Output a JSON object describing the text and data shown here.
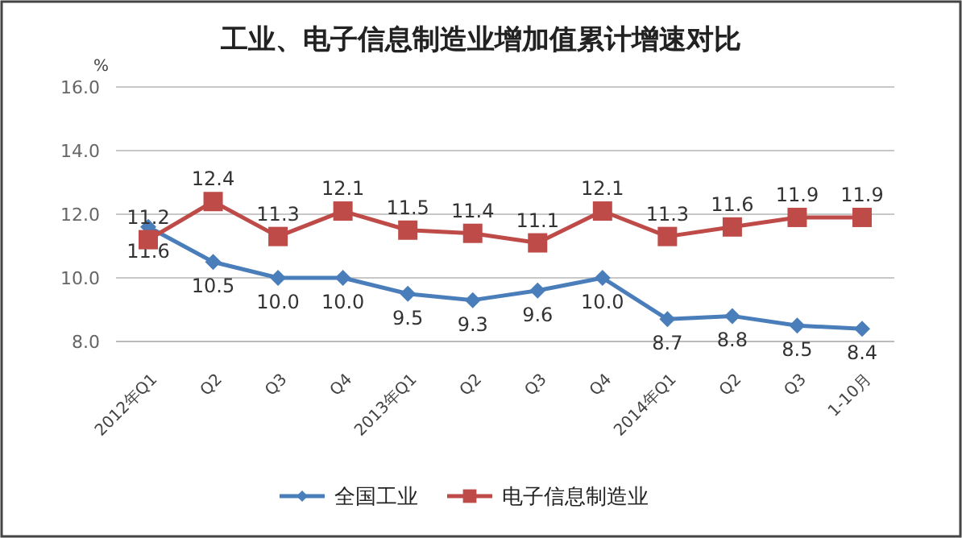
{
  "chart_data": {
    "type": "line",
    "title": "工业、电子信息制造业增加值累计增速对比",
    "ylabel": "%",
    "categories": [
      "2012年Q1",
      "Q2",
      "Q3",
      "Q4",
      "2013年Q1",
      "Q2",
      "Q3",
      "Q4",
      "2014年Q1",
      "Q2",
      "Q3",
      "1-10月"
    ],
    "series": [
      {
        "name": "全国工业",
        "color": "#4a7ebb",
        "marker": "diamond",
        "values": [
          11.6,
          10.5,
          10.0,
          10.0,
          9.5,
          9.3,
          9.6,
          10.0,
          8.7,
          8.8,
          8.5,
          8.4
        ],
        "value_labels": [
          "11.6",
          "10.5",
          "10.0",
          "10.0",
          "9.5",
          "9.3",
          "9.6",
          "10.0",
          "8.7",
          "8.8",
          "8.5",
          "8.4"
        ]
      },
      {
        "name": "电子信息制造业",
        "color": "#be4b48",
        "marker": "square",
        "values": [
          11.2,
          12.4,
          11.3,
          12.1,
          11.5,
          11.4,
          11.1,
          12.1,
          11.3,
          11.6,
          11.9,
          11.9
        ],
        "value_labels": [
          "11.2",
          "12.4",
          "11.3",
          "12.1",
          "11.5",
          "11.4",
          "11.1",
          "12.1",
          "11.3",
          "11.6",
          "11.9",
          "11.9"
        ]
      }
    ],
    "ylim": [
      8,
      16
    ],
    "yticks": [
      {
        "value": 8,
        "label": "8.0"
      },
      {
        "value": 10,
        "label": "10.0"
      },
      {
        "value": 12,
        "label": "12.0"
      },
      {
        "value": 14,
        "label": "14.0"
      },
      {
        "value": 16,
        "label": "16.0"
      }
    ],
    "grid": "y",
    "legend": "bottom",
    "line_style": "solid"
  }
}
